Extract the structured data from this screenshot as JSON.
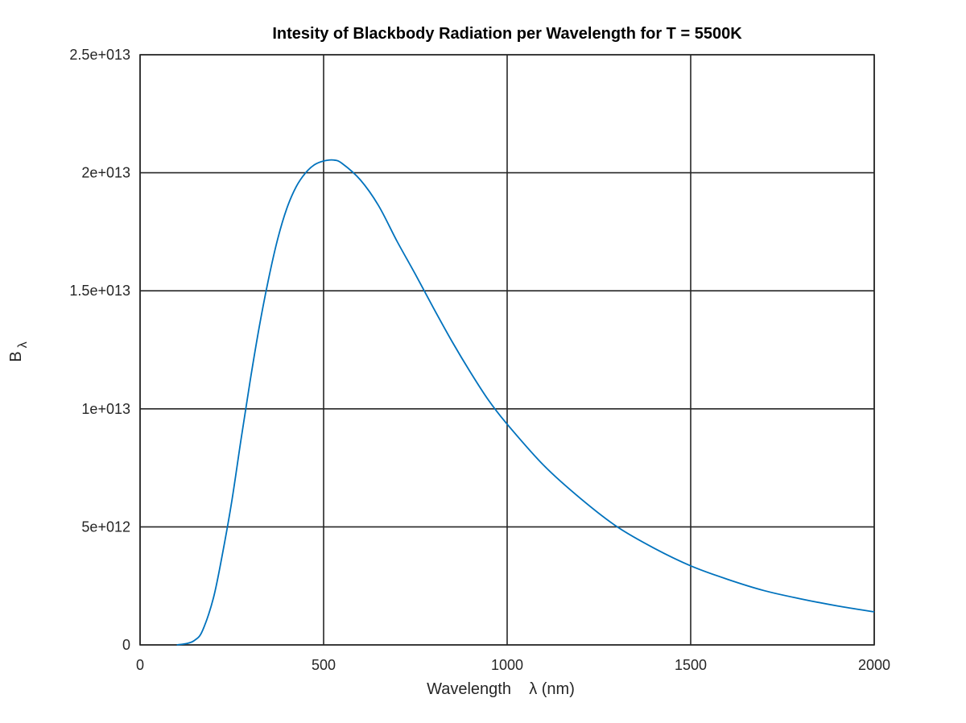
{
  "chart_data": {
    "type": "line",
    "title": "Intesity of Blackbody Radiation per Wavelength for T = 5500K",
    "xlabel": "Wavelength    λ (nm)",
    "ylabel": "B",
    "ylabel_subscript": "λ",
    "xlim": [
      0,
      2000
    ],
    "ylim": [
      0,
      25000000000000
    ],
    "xticks": [
      0,
      500,
      1000,
      1500,
      2000
    ],
    "xtick_labels": [
      "0",
      "500",
      "1000",
      "1500",
      "2000"
    ],
    "yticks": [
      0,
      5000000000000,
      10000000000000,
      15000000000000,
      20000000000000,
      25000000000000
    ],
    "ytick_labels": [
      "0",
      "5e+012",
      "1e+013",
      "1.5e+013",
      "2e+013",
      "2.5e+013"
    ],
    "grid": true,
    "series": [
      {
        "color": "#0072bd",
        "x": [
          100,
          130,
          150,
          170,
          200,
          225,
          250,
          275,
          300,
          325,
          350,
          375,
          400,
          425,
          450,
          475,
          500,
          527,
          550,
          600,
          650,
          700,
          750,
          800,
          850,
          900,
          950,
          1000,
          1100,
          1200,
          1300,
          1400,
          1500,
          1600,
          1700,
          1800,
          1900,
          2000
        ],
        "y": [
          0,
          70000000000,
          210000000000,
          600000000000,
          2000000000000,
          3900000000000,
          6100000000000,
          8700000000000,
          11200000000000,
          13500000000000,
          15500000000000,
          17200000000000,
          18500000000000,
          19400000000000,
          19980000000000,
          20340000000000,
          20500000000000,
          20540000000000,
          20400000000000,
          19700000000000,
          18600000000000,
          17100000000000,
          15700000000000,
          14250000000000,
          12850000000000,
          11550000000000,
          10350000000000,
          9350000000000,
          7600000000000,
          6200000000000,
          5000000000000,
          4100000000000,
          3350000000000,
          2780000000000,
          2300000000000,
          1950000000000,
          1650000000000,
          1400000000000
        ]
      }
    ]
  }
}
